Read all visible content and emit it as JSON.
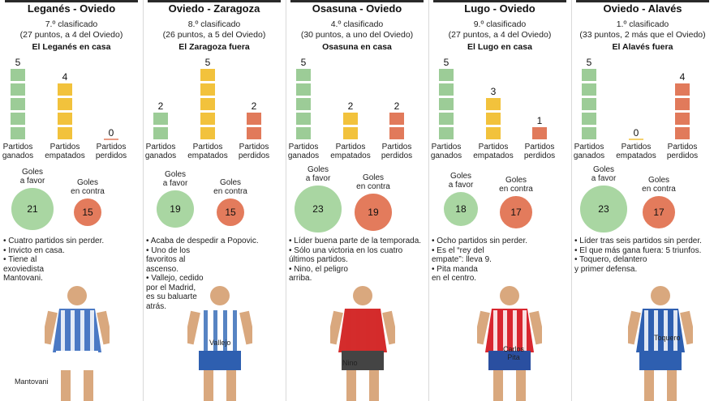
{
  "colors": {
    "green": "#9ccc97",
    "yellow": "#f2c23c",
    "red": "#e17a5b",
    "green_circle": "#a9d6a2",
    "red_circle": "#e37b5c"
  },
  "chart_data": [
    {
      "type": "bar",
      "title": "Leganés - Oviedo",
      "rank": "7.º clasificado",
      "points": "(27 puntos, a 4 del Oviedo)",
      "venue": "El Leganés en casa",
      "categories": [
        "Partidos ganados",
        "Partidos empatados",
        "Partidos perdidos"
      ],
      "values": [
        5,
        4,
        0
      ],
      "goals": {
        "for_label": "Goles a favor",
        "for": 21,
        "against_label": "Goles en contra",
        "against": 15
      },
      "notes": [
        "• Cuatro partidos sin perder.",
        "• Invicto en casa.",
        "• Tiene al",
        "exoviedista",
        "Mantovani."
      ],
      "player": "Mantovani"
    },
    {
      "type": "bar",
      "title": "Oviedo - Zaragoza",
      "rank": "8.º clasificado",
      "points": "(26 puntos, a 5 del Oviedo)",
      "venue": "El Zaragoza fuera",
      "categories": [
        "Partidos ganados",
        "Partidos empatados",
        "Partidos perdidos"
      ],
      "values": [
        2,
        5,
        2
      ],
      "goals": {
        "for_label": "Goles a favor",
        "for": 19,
        "against_label": "Goles en contra",
        "against": 15
      },
      "notes": [
        "• Acaba de despedir a Popovic.",
        "• Uno de los",
        "favoritos al",
        "ascenso.",
        "• Vallejo, cedido",
        "por el Madrid,",
        "es su baluarte",
        "atrás."
      ],
      "player": "Vallejo"
    },
    {
      "type": "bar",
      "title": "Osasuna - Oviedo",
      "rank": "4.º clasificado",
      "points": "(30 puntos, a uno del Oviedo)",
      "venue": "Osasuna en casa",
      "categories": [
        "Partidos ganados",
        "Partidos empatados",
        "Partidos perdidos"
      ],
      "values": [
        5,
        2,
        2
      ],
      "goals": {
        "for_label": "Goles a favor",
        "for": 23,
        "against_label": "Goles en contra",
        "against": 19
      },
      "notes": [
        "• Líder buena parte de la temporada.",
        "• Sólo una victoria en los cuatro",
        "últimos partidos.",
        "• Nino, el peligro",
        "arriba."
      ],
      "player": "Nino"
    },
    {
      "type": "bar",
      "title": "Lugo - Oviedo",
      "rank": "9.º clasificado",
      "points": "(27 puntos, a 4 del Oviedo)",
      "venue": "El Lugo en casa",
      "categories": [
        "Partidos ganados",
        "Partidos empatados",
        "Partidos perdidos"
      ],
      "values": [
        5,
        3,
        1
      ],
      "goals": {
        "for_label": "Goles a favor",
        "for": 18,
        "against_label": "Goles en contra",
        "against": 17
      },
      "notes": [
        "• Ocho partidos sin perder.",
        "• Es el “rey del",
        "empate”: lleva 9.",
        "• Pita manda",
        "en el centro."
      ],
      "player": "Carlos Pita"
    },
    {
      "type": "bar",
      "title": "Oviedo - Alavés",
      "rank": "1.º clasificado",
      "points": "(33 puntos, 2 más que el Oviedo)",
      "venue": "El Alavés fuera",
      "categories": [
        "Partidos ganados",
        "Partidos empatados",
        "Partidos perdidos"
      ],
      "values": [
        5,
        0,
        4
      ],
      "goals": {
        "for_label": "Goles a favor",
        "for": 23,
        "against_label": "Goles en contra",
        "against": 17
      },
      "notes": [
        "• Líder tras seis partidos sin perder.",
        "• El que más gana fuera: 5 triunfos.",
        "• Toquero, delantero",
        "y primer defensa."
      ],
      "player": "Toquero"
    }
  ]
}
